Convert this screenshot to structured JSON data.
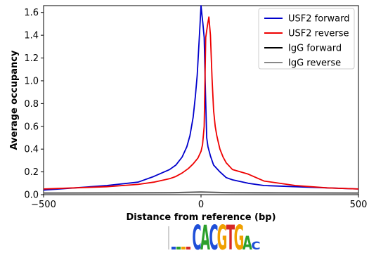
{
  "chart_data": {
    "type": "line",
    "xlabel": "Distance from reference (bp)",
    "ylabel": "Average occupancy",
    "xlim": [
      -500,
      500
    ],
    "ylim": [
      0,
      1.66
    ],
    "x_ticks": [
      -500,
      0,
      500
    ],
    "y_ticks": [
      0.0,
      0.2,
      0.4,
      0.6,
      0.8,
      1.0,
      1.2,
      1.4,
      1.6
    ],
    "x_tick_labels": [
      "−500",
      "0",
      "500"
    ],
    "y_tick_labels": [
      "0.0",
      "0.2",
      "0.4",
      "0.6",
      "0.8",
      "1.0",
      "1.2",
      "1.4",
      "1.6"
    ],
    "legend_position": "top-right",
    "grid": false,
    "series": [
      {
        "name": "USF2 forward",
        "color": "#0000cc",
        "x": [
          -500,
          -400,
          -300,
          -200,
          -150,
          -100,
          -80,
          -60,
          -45,
          -35,
          -25,
          -18,
          -12,
          -8,
          -4,
          0,
          3,
          6,
          10,
          14,
          18,
          22,
          30,
          40,
          60,
          80,
          100,
          150,
          200,
          300,
          400,
          500
        ],
        "y": [
          0.04,
          0.06,
          0.08,
          0.11,
          0.16,
          0.22,
          0.26,
          0.33,
          0.42,
          0.52,
          0.68,
          0.86,
          1.05,
          1.25,
          1.45,
          1.66,
          1.58,
          1.5,
          1.38,
          0.9,
          0.5,
          0.42,
          0.34,
          0.26,
          0.2,
          0.15,
          0.13,
          0.1,
          0.08,
          0.07,
          0.06,
          0.05
        ]
      },
      {
        "name": "USF2 reverse",
        "color": "#ee0000",
        "x": [
          -500,
          -400,
          -300,
          -200,
          -150,
          -100,
          -80,
          -60,
          -40,
          -25,
          -10,
          0,
          5,
          10,
          15,
          20,
          25,
          30,
          35,
          40,
          45,
          50,
          55,
          60,
          70,
          80,
          100,
          150,
          200,
          300,
          400,
          500
        ],
        "y": [
          0.05,
          0.06,
          0.07,
          0.09,
          0.11,
          0.14,
          0.16,
          0.19,
          0.23,
          0.27,
          0.32,
          0.38,
          0.44,
          0.6,
          1.38,
          1.48,
          1.56,
          1.4,
          1.02,
          0.74,
          0.6,
          0.52,
          0.46,
          0.4,
          0.33,
          0.28,
          0.22,
          0.18,
          0.12,
          0.08,
          0.06,
          0.05
        ]
      },
      {
        "name": "IgG forward",
        "color": "#000000",
        "x": [
          -500,
          -250,
          -100,
          0,
          100,
          250,
          500
        ],
        "y": [
          0.015,
          0.016,
          0.018,
          0.022,
          0.018,
          0.016,
          0.015
        ]
      },
      {
        "name": "IgG reverse",
        "color": "#888888",
        "x": [
          -500,
          -250,
          -100,
          0,
          100,
          250,
          500
        ],
        "y": [
          0.012,
          0.013,
          0.015,
          0.019,
          0.015,
          0.013,
          0.012
        ]
      }
    ]
  },
  "motif": {
    "letters": [
      "C",
      "A",
      "C",
      "G",
      "T",
      "G",
      "A",
      "C"
    ],
    "colors": {
      "A": "#2ca02c",
      "C": "#1f4fd8",
      "G": "#f0a000",
      "T": "#d62728"
    }
  }
}
